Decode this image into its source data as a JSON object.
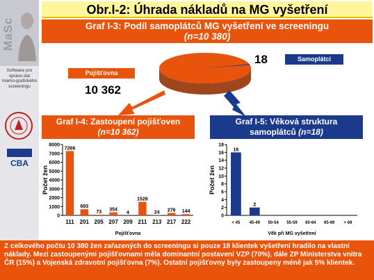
{
  "sidebar": {
    "logo_text": "MaSc",
    "caption": "Software pro správu dat mamo-grafického screeningu",
    "cba_text": "CBA"
  },
  "title": "Obr.I-2: Úhrada nákladů na MG vyšetření",
  "pie_section": {
    "title_line1": "Graf I-3: Podíl samoplátců MG vyšetření ve screeningu",
    "title_line2": "(n=10 380)",
    "labels": {
      "insurance": "Pojišťovna",
      "self": "Samoplátci"
    },
    "values": {
      "insurance": "10 362",
      "self": "18"
    }
  },
  "bar_section": {
    "title_line1": "Graf I-4: Zastoupení pojišťoven",
    "title_line2": "(n=10 362)"
  },
  "age_section": {
    "title_line1": "Graf I-5: Věková struktura",
    "title_line2a": "samoplátců ",
    "title_line2b": "(n=18)"
  },
  "footer_text": "Z celkového počtu 10 380 žen zařazených do screeningu si pouze 18 klientek vyšetření hradilo na vlastní náklady. Mezi zastoupenými pojišťovnami měla dominantní postavení VZP (70%), dále ZP Ministerstva vnitra ČR (15%) a Vojenská zdravotní pojišťovna (7%). Ostatní pojišťovny byly zastoupeny méně jak 5% klientek.",
  "colors": {
    "orange": "#e8540c",
    "navy": "#1a3a8c",
    "pie_brown": "#a0461e",
    "pie_orange": "#e8540c"
  },
  "chart_data": [
    {
      "type": "pie",
      "title": "Graf I-3: Podíl samoplátců MG vyšetření ve screeningu (n=10 380)",
      "categories": [
        "Pojišťovna",
        "Samoplátci"
      ],
      "values": [
        10362,
        18
      ]
    },
    {
      "type": "bar",
      "title": "Graf I-4: Zastoupení pojišťoven (n=10 362)",
      "categories": [
        "111",
        "201",
        "205",
        "207",
        "209",
        "211",
        "213",
        "217",
        "222"
      ],
      "values": [
        7266,
        693,
        73,
        354,
        4,
        1528,
        24,
        276,
        144
      ],
      "xlabel": "Pojišťovna",
      "ylabel": "Počet žen",
      "ylim": [
        0,
        8000
      ],
      "yticks": [
        0,
        1000,
        2000,
        3000,
        4000,
        5000,
        6000,
        7000,
        8000
      ],
      "grid": false
    },
    {
      "type": "bar",
      "title": "Graf I-5: Věková struktura samoplátců (n=18)",
      "categories": [
        "< 45",
        "45-49",
        "50-54",
        "55-59",
        "60-64",
        "65-69",
        "> 69"
      ],
      "values": [
        16,
        2,
        0,
        0,
        0,
        0,
        0
      ],
      "data_labels": [
        "16",
        "2",
        "",
        "",
        "",
        "",
        ""
      ],
      "xlabel": "Věk při MG vyšetření",
      "ylabel": "Počet žen",
      "ylim": [
        0,
        18
      ],
      "yticks": [
        0,
        2,
        4,
        6,
        8,
        10,
        12,
        14,
        16,
        18
      ],
      "grid": false
    }
  ]
}
